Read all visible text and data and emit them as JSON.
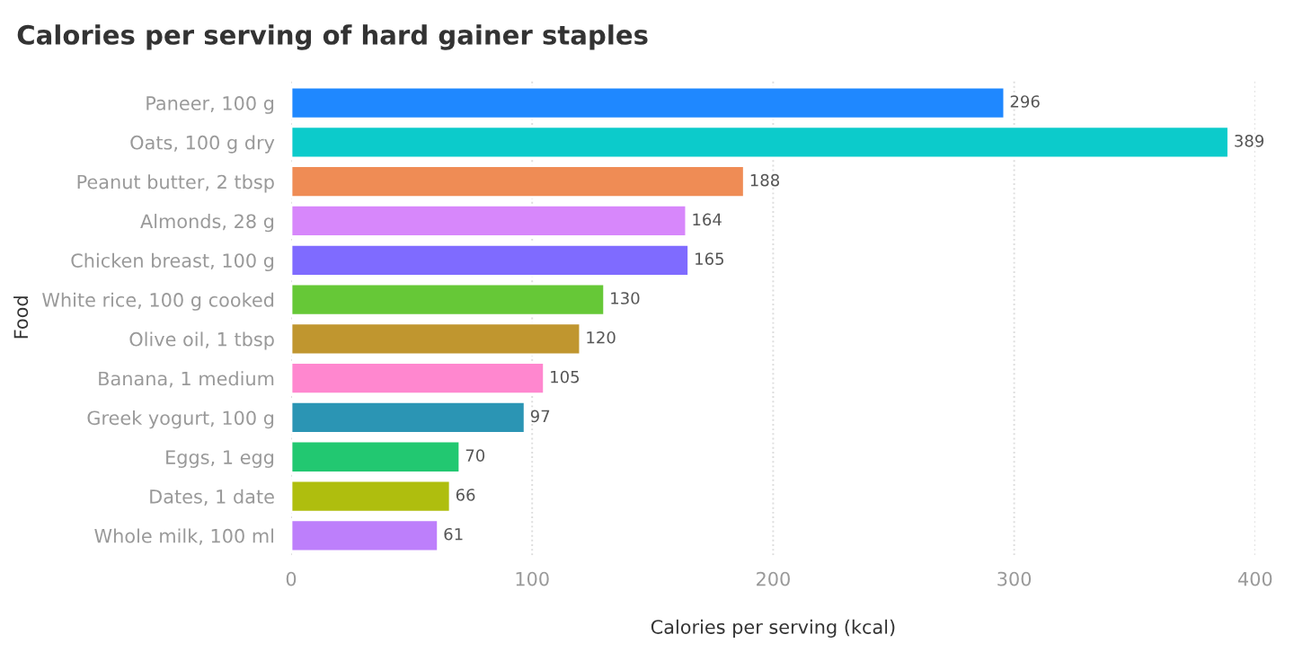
{
  "chart_data": {
    "type": "bar",
    "orientation": "horizontal",
    "title": "Calories per serving of hard gainer staples",
    "xlabel": "Calories per serving (kcal)",
    "ylabel": "Food",
    "categories": [
      "Paneer, 100 g",
      "Oats, 100 g dry",
      "Peanut butter, 2 tbsp",
      "Almonds, 28 g",
      "Chicken breast, 100 g",
      "White rice, 100 g cooked",
      "Olive oil, 1 tbsp",
      "Banana, 1 medium",
      "Greek yogurt, 100 g",
      "Eggs, 1 egg",
      "Dates, 1 date",
      "Whole milk, 100 ml"
    ],
    "values": [
      296,
      389,
      188,
      164,
      165,
      130,
      120,
      105,
      97,
      70,
      66,
      61
    ],
    "colors": [
      "#1f88ff",
      "#0ccbcb",
      "#ef8c55",
      "#d787fb",
      "#7f6bff",
      "#66c837",
      "#c0962f",
      "#ff87cf",
      "#2b95b4",
      "#22c871",
      "#afbe0e",
      "#bd7ffb"
    ],
    "xlim": [
      0,
      400
    ],
    "xticks": [
      0,
      100,
      200,
      300,
      400
    ],
    "grid": "x",
    "data_labels": true
  }
}
